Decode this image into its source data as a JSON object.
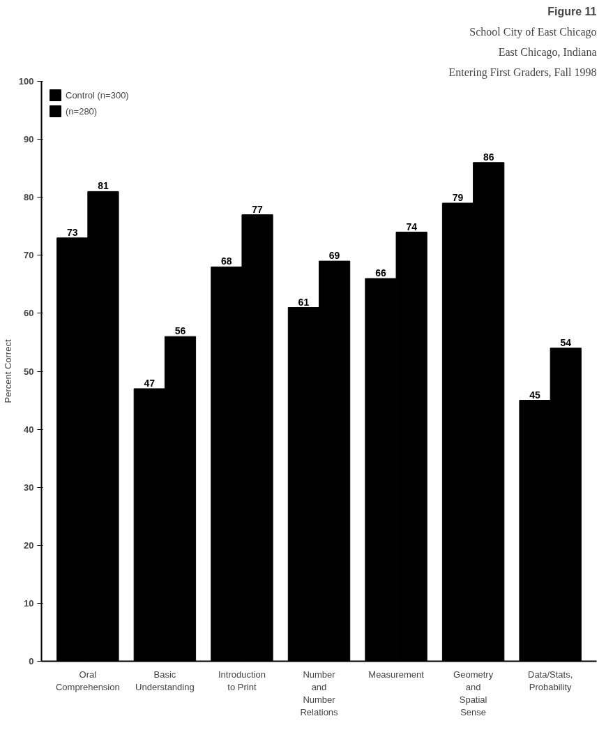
{
  "chart_data": {
    "type": "bar",
    "title": "Figure 11",
    "annotations": [
      "School City of East Chicago",
      "East Chicago, Indiana",
      "Entering First Graders, Fall 1998"
    ],
    "ylabel": "Percent Correct",
    "categories": [
      "Oral\nComprehension",
      "Basic\nUnderstanding",
      "Introduction\nto Print",
      "Number\nand\nNumber\nRelations",
      "Measurement",
      "Geometry\nand\nSpatial\nSense",
      "Data/Stats,\nProbability"
    ],
    "series": [
      {
        "name": "Control (n=300)",
        "color": "#000000",
        "values": [
          73,
          47,
          68,
          61,
          66,
          79,
          45
        ]
      },
      {
        "name": "(n=280)",
        "color": "#000000",
        "values": [
          81,
          56,
          77,
          69,
          74,
          86,
          54
        ]
      }
    ],
    "ylim": [
      0,
      100
    ],
    "yticks": [
      0,
      10,
      20,
      30,
      40,
      50,
      60,
      70,
      80,
      90,
      100
    ],
    "grid": false,
    "legend": "top left",
    "data_labels": true
  }
}
